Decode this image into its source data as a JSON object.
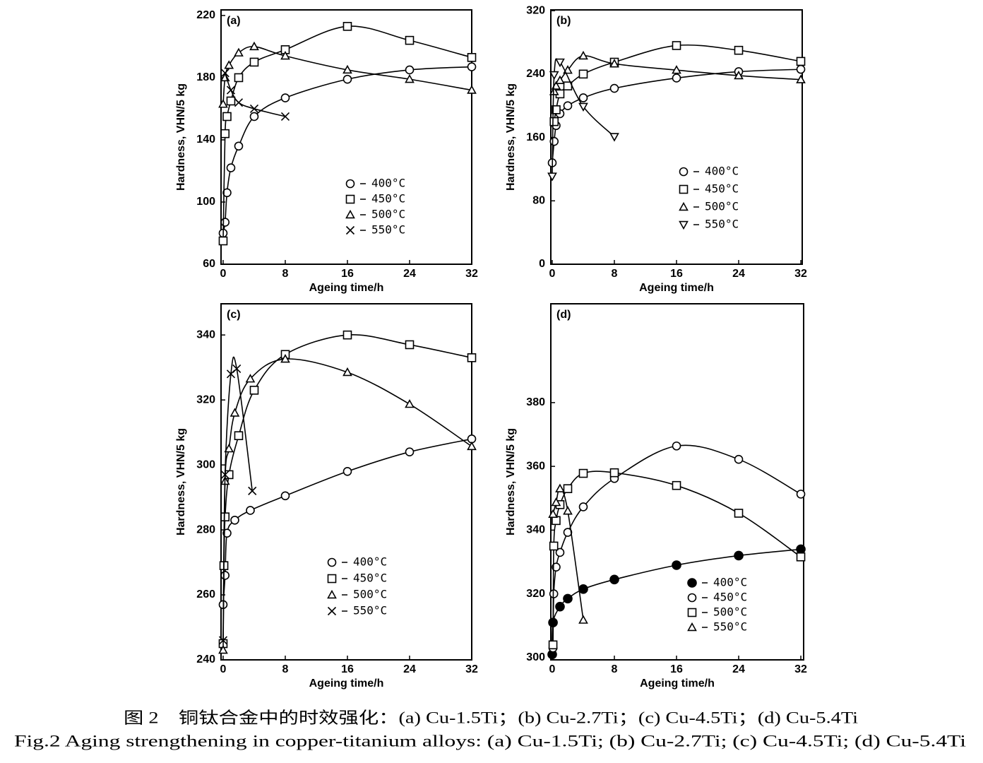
{
  "chart_data": [
    {
      "type": "line",
      "label": "(a)",
      "xlabel": "Ageing time/h",
      "ylabel": "Hardness, VHN/5 kg",
      "xlim": [
        -0.27,
        32
      ],
      "xticks": [
        0,
        8,
        16,
        24,
        32
      ],
      "ylim": [
        60,
        223.6
      ],
      "yticks": [
        60,
        100,
        140,
        180,
        220
      ],
      "series": [
        {
          "name": "400°C",
          "marker": "circle",
          "color": "#000000",
          "x": [
            0,
            0.25,
            0.5,
            1,
            2,
            4,
            8,
            16,
            24,
            32
          ],
          "values": [
            80,
            87,
            106,
            122,
            136,
            155,
            167,
            179,
            185,
            187
          ]
        },
        {
          "name": "450°C",
          "marker": "square",
          "color": "#000000",
          "x": [
            0,
            0.25,
            0.5,
            1,
            2,
            4,
            8,
            16,
            24,
            32
          ],
          "values": [
            75,
            144,
            155,
            165,
            180,
            190,
            198,
            213,
            204,
            193
          ]
        },
        {
          "name": "500°C",
          "marker": "triangle",
          "color": "#000000",
          "x": [
            0,
            0.25,
            0.75,
            2,
            4,
            8,
            16,
            24,
            32
          ],
          "values": [
            163,
            180,
            188,
            196,
            200,
            194,
            185,
            179,
            172
          ]
        },
        {
          "name": "550°C",
          "marker": "cross",
          "color": "#000000",
          "x": [
            0.25,
            1,
            2,
            4,
            8
          ],
          "values": [
            183,
            172,
            164,
            160,
            155
          ]
        }
      ]
    },
    {
      "type": "line",
      "label": "(b)",
      "xlabel": "Ageing time/h",
      "ylabel": "Hardness, VHN/5 kg",
      "xlim": [
        -0.18,
        32.18
      ],
      "xticks": [
        0,
        8,
        16,
        24,
        32
      ],
      "ylim": [
        0,
        321
      ],
      "yticks": [
        0,
        80,
        160,
        240,
        320
      ],
      "series": [
        {
          "name": "400°C",
          "marker": "circle",
          "color": "#000000",
          "x": [
            0,
            0.25,
            0.5,
            1,
            2,
            4,
            8,
            16,
            24,
            32
          ],
          "values": [
            128,
            155,
            175,
            190,
            200,
            210,
            222,
            235,
            243,
            246
          ]
        },
        {
          "name": "450°C",
          "marker": "square",
          "color": "#000000",
          "x": [
            0.25,
            0.5,
            1,
            2,
            4,
            8,
            16,
            24,
            32
          ],
          "values": [
            180,
            195,
            215,
            225,
            240,
            255,
            276,
            270,
            256
          ]
        },
        {
          "name": "500°C",
          "marker": "triangle",
          "color": "#000000",
          "x": [
            0.25,
            0.5,
            1,
            2,
            4,
            8,
            16,
            24,
            32
          ],
          "values": [
            218,
            225,
            232,
            245,
            263,
            253,
            245,
            238,
            233
          ]
        },
        {
          "name": "550°C",
          "marker": "triangle-down",
          "color": "#000000",
          "x": [
            0,
            0.25,
            1,
            4,
            8
          ],
          "values": [
            111,
            239,
            255,
            199,
            161
          ]
        }
      ]
    },
    {
      "type": "line",
      "label": "(c)",
      "xlabel": "Ageing time/h",
      "ylabel": "Hardness, VHN/5 kg",
      "xlim": [
        -0.27,
        32
      ],
      "xticks": [
        0,
        8,
        16,
        24,
        32
      ],
      "ylim": [
        240,
        349.6
      ],
      "yticks": [
        240,
        260,
        280,
        300,
        320,
        340
      ],
      "series": [
        {
          "name": "400°C",
          "marker": "circle",
          "color": "#000000",
          "x": [
            0,
            0.25,
            0.5,
            1.5,
            3.5,
            8,
            16,
            24,
            32
          ],
          "values": [
            257,
            266,
            279,
            283,
            286,
            290.5,
            298,
            304,
            308
          ]
        },
        {
          "name": "450°C",
          "marker": "square",
          "color": "#000000",
          "x": [
            0,
            0.1,
            0.25,
            0.75,
            2,
            4,
            8,
            16,
            24,
            32
          ],
          "values": [
            245,
            269,
            284,
            297,
            309,
            323,
            334,
            340,
            337,
            333
          ]
        },
        {
          "name": "500°C",
          "marker": "triangle",
          "color": "#000000",
          "x": [
            0,
            0.25,
            0.75,
            1.5,
            3.5,
            8,
            16,
            24,
            32
          ],
          "values": [
            243,
            295,
            305,
            316,
            326.5,
            332.6,
            328.5,
            318.7,
            305.7
          ]
        },
        {
          "name": "550°C",
          "marker": "cross",
          "color": "#000000",
          "x": [
            0,
            0.25,
            1,
            1.75,
            3.75
          ],
          "values": [
            246,
            297,
            328,
            329.6,
            292
          ]
        }
      ]
    },
    {
      "type": "line",
      "label": "(d)",
      "xlabel": "Ageing time/h",
      "ylabel": "Hardness, VHN/5 kg",
      "xlim": [
        -0.18,
        32.36
      ],
      "xticks": [
        0,
        8,
        16,
        24,
        32
      ],
      "ylim": [
        299.3,
        411
      ],
      "yticks": [
        300,
        320,
        340,
        360,
        380
      ],
      "series": [
        {
          "name": "400°C",
          "marker": "dot",
          "color": "#000000",
          "x": [
            0,
            0.1,
            1,
            2,
            4,
            8,
            16,
            24,
            32
          ],
          "values": [
            301,
            311,
            316,
            318.5,
            321.5,
            324.5,
            329,
            332,
            334
          ]
        },
        {
          "name": "450°C",
          "marker": "circle",
          "color": "#000000",
          "x": [
            0.1,
            0.2,
            0.5,
            1,
            2,
            4,
            8,
            16,
            24,
            32
          ],
          "values": [
            303,
            320,
            328.4,
            333,
            339.3,
            347.3,
            356.2,
            366.4,
            362.2,
            351.3
          ]
        },
        {
          "name": "500°C",
          "marker": "square",
          "color": "#000000",
          "x": [
            0.1,
            0.2,
            0.5,
            1,
            2,
            4,
            8,
            16,
            24,
            32
          ],
          "values": [
            304,
            335,
            343,
            348,
            353,
            357.8,
            358,
            354,
            345.3,
            331.6
          ]
        },
        {
          "name": "550°C",
          "marker": "triangle",
          "color": "#000000",
          "x": [
            0.1,
            0.5,
            1,
            2,
            4
          ],
          "values": [
            345,
            348.7,
            353,
            346,
            311.8
          ]
        }
      ]
    }
  ],
  "caption": {
    "zh": "图 2　铜钛合金中的时效强化：(a) Cu-1.5Ti；(b) Cu-2.7Ti；(c) Cu-4.5Ti；(d) Cu-5.4Ti",
    "en": "Fig.2 Aging strengthening in copper-titanium alloys: (a) Cu-1.5Ti; (b) Cu-2.7Ti; (c) Cu-4.5Ti; (d) Cu-5.4Ti"
  }
}
